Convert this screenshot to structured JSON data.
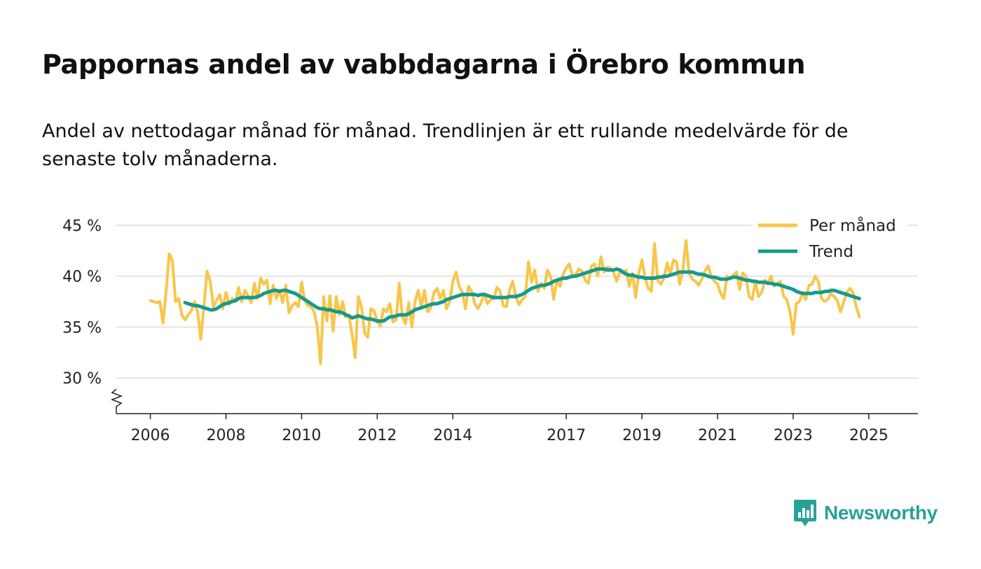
{
  "title": "Pappornas andel av vabbdagarna i Örebro kommun",
  "subtitle": "Andel av nettodagar månad för månad. Trendlinjen är ett rullande medelvärde för de senaste tolv månaderna.",
  "brand": "Newsworthy",
  "colors": {
    "monthly": "#f9c54a",
    "trend": "#159a8c",
    "grid": "#dddddd",
    "axis": "#222222",
    "brand": "#2aa198"
  },
  "chart_data": {
    "type": "line",
    "title": "Pappornas andel av vabbdagarna i Örebro kommun",
    "xlabel": "",
    "ylabel": "",
    "ylim": [
      26.5,
      46.5
    ],
    "xlim": [
      2005.1,
      2026.3
    ],
    "yticks": [
      30,
      35,
      40,
      45
    ],
    "ytick_labels": [
      "30 %",
      "35 %",
      "40 %",
      "45 %"
    ],
    "xticks": [
      2006,
      2008,
      2010,
      2012,
      2014,
      2017,
      2019,
      2021,
      2023,
      2025
    ],
    "xtick_labels": [
      "2006",
      "2008",
      "2010",
      "2012",
      "2014",
      "2017",
      "2019",
      "2021",
      "2023",
      "2025"
    ],
    "legend_position": "top-right",
    "series": [
      {
        "name": "Per månad",
        "x_start": 2006.0,
        "step": 0.0833333,
        "values": [
          37.6,
          37.5,
          37.4,
          37.5,
          35.4,
          38.5,
          42.2,
          41.5,
          37.5,
          37.8,
          36.2,
          35.7,
          36.2,
          36.6,
          37.5,
          36.5,
          33.8,
          37.0,
          40.5,
          39.5,
          37.0,
          37.6,
          38.2,
          36.8,
          38.4,
          37.2,
          37.8,
          37.5,
          38.9,
          37.5,
          38.6,
          38.1,
          37.4,
          39.3,
          37.8,
          39.8,
          39.2,
          39.6,
          37.3,
          39.1,
          37.8,
          38.6,
          37.4,
          39.1,
          36.4,
          37.1,
          37.4,
          37.0,
          39.4,
          37.6,
          37.1,
          37.0,
          36.5,
          35.0,
          31.4,
          38.0,
          35.6,
          38.1,
          34.6,
          38.0,
          36.2,
          37.5,
          36.0,
          36.2,
          34.3,
          32.0,
          38.0,
          37.0,
          34.4,
          34.0,
          36.8,
          36.6,
          35.6,
          35.1,
          36.8,
          36.5,
          37.3,
          35.5,
          35.7,
          39.3,
          36.0,
          35.3,
          37.4,
          35.0,
          37.5,
          38.6,
          37.0,
          38.6,
          36.5,
          36.9,
          38.4,
          38.8,
          37.8,
          38.6,
          36.8,
          37.5,
          39.5,
          40.4,
          39.0,
          38.4,
          36.8,
          39.0,
          38.5,
          37.3,
          36.8,
          37.4,
          38.3,
          37.3,
          37.7,
          37.8,
          38.9,
          38.5,
          37.1,
          37.0,
          38.6,
          39.5,
          38.0,
          37.2,
          37.7,
          38.0,
          41.4,
          39.4,
          40.6,
          38.5,
          39.3,
          38.8,
          40.6,
          40.0,
          37.7,
          39.6,
          39.0,
          40.2,
          40.8,
          41.2,
          39.9,
          40.2,
          40.7,
          40.5,
          39.6,
          39.3,
          41.0,
          41.2,
          40.0,
          41.9,
          40.4,
          40.9,
          40.8,
          40.4,
          39.5,
          40.4,
          40.3,
          40.6,
          39.0,
          40.3,
          37.9,
          40.3,
          41.6,
          39.8,
          38.8,
          38.5,
          43.2,
          39.6,
          39.2,
          39.8,
          41.3,
          40.2,
          41.6,
          41.4,
          39.2,
          40.6,
          43.5,
          40.3,
          39.7,
          39.5,
          39.1,
          39.7,
          40.5,
          41.0,
          40.0,
          39.5,
          39.2,
          38.3,
          37.8,
          40.0,
          39.8,
          40.1,
          40.4,
          38.7,
          40.3,
          40.0,
          38.0,
          37.7,
          39.5,
          38.0,
          38.4,
          39.6,
          39.3,
          40.0,
          39.0,
          39.3,
          39.5,
          38.0,
          37.7,
          36.5,
          34.3,
          37.3,
          37.5,
          38.4,
          37.7,
          39.1,
          39.2,
          40.0,
          39.5,
          37.8,
          37.5,
          37.7,
          38.3,
          38.0,
          37.6,
          36.5,
          37.4,
          38.4,
          38.8,
          38.4,
          37.0,
          36.0
        ]
      },
      {
        "name": "Trend",
        "x_start": 2006.9167,
        "step": 0.0833333,
        "values": [
          37.4,
          37.3,
          37.2,
          37.1,
          37.1,
          37.0,
          36.9,
          36.8,
          36.7,
          36.7,
          36.8,
          37.0,
          37.2,
          37.3,
          37.4,
          37.5,
          37.6,
          37.8,
          37.9,
          37.9,
          37.9,
          37.9,
          37.9,
          38.0,
          38.1,
          38.3,
          38.4,
          38.5,
          38.6,
          38.6,
          38.5,
          38.6,
          38.6,
          38.5,
          38.4,
          38.3,
          38.1,
          37.9,
          37.7,
          37.5,
          37.3,
          37.1,
          36.9,
          36.8,
          36.8,
          36.7,
          36.7,
          36.6,
          36.5,
          36.5,
          36.4,
          36.2,
          36.1,
          35.9,
          36.0,
          36.1,
          36.0,
          35.9,
          35.8,
          35.8,
          35.7,
          35.6,
          35.6,
          35.6,
          35.8,
          36.0,
          36.0,
          36.1,
          36.2,
          36.2,
          36.2,
          36.3,
          36.5,
          36.7,
          36.8,
          36.9,
          37.0,
          37.1,
          37.2,
          37.3,
          37.3,
          37.4,
          37.5,
          37.7,
          37.8,
          37.9,
          38.0,
          38.1,
          38.2,
          38.2,
          38.2,
          38.2,
          38.2,
          38.1,
          38.2,
          38.2,
          38.1,
          38.0,
          37.9,
          37.9,
          37.9,
          37.9,
          37.9,
          38.0,
          38.0,
          38.0,
          38.1,
          38.2,
          38.4,
          38.6,
          38.8,
          38.9,
          39.0,
          39.1,
          39.1,
          39.2,
          39.3,
          39.5,
          39.6,
          39.7,
          39.8,
          39.8,
          39.9,
          40.0,
          40.0,
          40.1,
          40.2,
          40.3,
          40.4,
          40.5,
          40.6,
          40.7,
          40.7,
          40.7,
          40.6,
          40.6,
          40.6,
          40.7,
          40.6,
          40.4,
          40.2,
          40.1,
          40.1,
          40.0,
          39.9,
          39.9,
          39.8,
          39.8,
          39.8,
          39.8,
          39.9,
          39.9,
          40.0,
          40.0,
          40.1,
          40.2,
          40.3,
          40.4,
          40.4,
          40.4,
          40.4,
          40.4,
          40.3,
          40.2,
          40.2,
          40.1,
          40.0,
          39.9,
          39.9,
          39.8,
          39.7,
          39.7,
          39.7,
          39.8,
          39.9,
          39.9,
          39.8,
          39.7,
          39.6,
          39.6,
          39.5,
          39.5,
          39.4,
          39.4,
          39.4,
          39.3,
          39.3,
          39.2,
          39.2,
          39.1,
          39.0,
          38.9,
          38.8,
          38.7,
          38.5,
          38.4,
          38.3,
          38.3,
          38.3,
          38.3,
          38.4,
          38.4,
          38.4,
          38.5,
          38.5,
          38.6,
          38.6,
          38.5,
          38.4,
          38.3,
          38.2,
          38.1,
          38.0,
          37.9,
          37.8
        ]
      }
    ]
  }
}
